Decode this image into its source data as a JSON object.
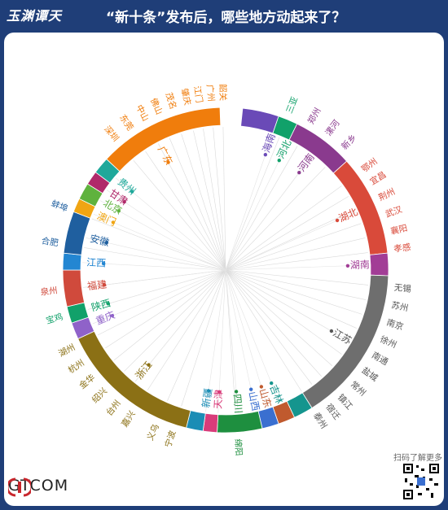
{
  "header": {
    "logo": "玉渊谭天",
    "title": "“新十条”发布后，哪些地方动起来了？"
  },
  "footer": {
    "brand": "GTCOM",
    "qr_label": "扫码了解更多"
  },
  "chart_data": {
    "type": "chord-radial",
    "title": "“新十条”发布后，哪些地方动起来了？",
    "provinces": [
      {
        "name": "海南",
        "color": "#6a4ab7",
        "cities": []
      },
      {
        "name": "河北",
        "color": "#11a16a",
        "cities": [
          "三亚"
        ]
      },
      {
        "name": "河南",
        "color": "#8a3a8e",
        "cities": [
          "郑州",
          "漯河",
          "新乡"
        ]
      },
      {
        "name": "湖北",
        "color": "#d94a3a",
        "cities": [
          "鄂州",
          "宜昌",
          "荆州",
          "武汉",
          "襄阳",
          "孝感"
        ]
      },
      {
        "name": "湖南",
        "color": "#a23d96",
        "cities": []
      },
      {
        "name": "江苏",
        "color": "#6e6e6e",
        "cities": [
          "无锡",
          "苏州",
          "南京",
          "徐州",
          "南通",
          "盐城",
          "常州",
          "镇江",
          "宿迁",
          "泰州"
        ]
      },
      {
        "name": "吉林",
        "color": "#15958e",
        "cities": []
      },
      {
        "name": "山东",
        "color": "#c05a2e",
        "cities": []
      },
      {
        "name": "山西",
        "color": "#3a6fd0",
        "cities": []
      },
      {
        "name": "四川",
        "color": "#1e8f3f",
        "cities": [
          "绵阳"
        ]
      },
      {
        "name": "天津",
        "color": "#d83c7a",
        "cities": []
      },
      {
        "name": "新疆",
        "color": "#1b8db5",
        "cities": []
      },
      {
        "name": "浙江",
        "color": "#8b7015",
        "cities": [
          "湖州",
          "杭州",
          "金华",
          "绍兴",
          "台州",
          "嘉兴",
          "义乌",
          "宁波"
        ]
      },
      {
        "name": "重庆",
        "color": "#8f62c9",
        "cities": []
      },
      {
        "name": "陕西",
        "color": "#11a16a",
        "cities": [
          "宝鸡"
        ]
      },
      {
        "name": "福建",
        "color": "#d04a3c",
        "cities": [
          "泉州"
        ]
      },
      {
        "name": "江西",
        "color": "#2386d2",
        "cities": []
      },
      {
        "name": "安徽",
        "color": "#1f5f9f",
        "cities": [
          "蚌埠",
          "合肥"
        ]
      },
      {
        "name": "澳门",
        "color": "#f0a513",
        "cities": []
      },
      {
        "name": "北京",
        "color": "#5fb23e",
        "cities": []
      },
      {
        "name": "甘肃",
        "color": "#b02a6a",
        "cities": []
      },
      {
        "name": "贵州",
        "color": "#1fa89a",
        "cities": []
      },
      {
        "name": "广东",
        "color": "#f07d0c",
        "cities": [
          "深圳",
          "东莞",
          "中山",
          "佛山",
          "茂名",
          "肇庆",
          "江门",
          "广州",
          "韶关"
        ]
      }
    ]
  },
  "segments": [
    {
      "name": "海南",
      "start": 6,
      "end": 19,
      "color": "#6a4ab7"
    },
    {
      "name": "河北",
      "start": 19,
      "end": 26,
      "color": "#11a16a"
    },
    {
      "name": "河南",
      "start": 26,
      "end": 48,
      "color": "#8a3a8e"
    },
    {
      "name": "湖北",
      "start": 48,
      "end": 84,
      "color": "#d94a3a"
    },
    {
      "name": "湖南",
      "start": 84,
      "end": 92,
      "color": "#a23d96"
    },
    {
      "name": "江苏",
      "start": 92,
      "end": 148,
      "color": "#6e6e6e"
    },
    {
      "name": "吉林",
      "start": 148,
      "end": 155,
      "color": "#15958e"
    },
    {
      "name": "山东",
      "start": 155,
      "end": 161,
      "color": "#c05a2e"
    },
    {
      "name": "山西",
      "start": 161,
      "end": 167,
      "color": "#3a6fd0"
    },
    {
      "name": "四川",
      "start": 167,
      "end": 183,
      "color": "#1e8f3f"
    },
    {
      "name": "天津",
      "start": 183,
      "end": 188,
      "color": "#d83c7a"
    },
    {
      "name": "新疆",
      "start": 188,
      "end": 194,
      "color": "#1b8db5"
    },
    {
      "name": "浙江",
      "start": 194,
      "end": 245,
      "color": "#8b7015"
    },
    {
      "name": "重庆",
      "start": 245,
      "end": 251,
      "color": "#8f62c9"
    },
    {
      "name": "陕西",
      "start": 251,
      "end": 257,
      "color": "#11a16a"
    },
    {
      "name": "福建",
      "start": 257,
      "end": 270,
      "color": "#d04a3c"
    },
    {
      "name": "江西",
      "start": 270,
      "end": 276,
      "color": "#2386d2"
    },
    {
      "name": "安徽",
      "start": 276,
      "end": 291,
      "color": "#1f5f9f"
    },
    {
      "name": "澳门",
      "start": 291,
      "end": 296,
      "color": "#f0a513"
    },
    {
      "name": "北京",
      "start": 296,
      "end": 302,
      "color": "#5fb23e"
    },
    {
      "name": "甘肃",
      "start": 302,
      "end": 307,
      "color": "#b02a6a"
    },
    {
      "name": "贵州",
      "start": 307,
      "end": 313,
      "color": "#1fa89a"
    },
    {
      "name": "广东",
      "start": 313,
      "end": 358,
      "color": "#f07d0c"
    }
  ],
  "outer_labels": [
    {
      "t": "三亚",
      "a": 22,
      "c": "#11a16a"
    },
    {
      "t": "郑州",
      "a": 30,
      "c": "#8a3a8e"
    },
    {
      "t": "漯河",
      "a": 37,
      "c": "#8a3a8e"
    },
    {
      "t": "新乡",
      "a": 44,
      "c": "#8a3a8e"
    },
    {
      "t": "鄂州",
      "a": 54,
      "c": "#d94a3a"
    },
    {
      "t": "宜昌",
      "a": 59,
      "c": "#d94a3a"
    },
    {
      "t": "荆州",
      "a": 65,
      "c": "#d94a3a"
    },
    {
      "t": "武汉",
      "a": 71,
      "c": "#d94a3a"
    },
    {
      "t": "襄阳",
      "a": 77,
      "c": "#d94a3a"
    },
    {
      "t": "孝感",
      "a": 83,
      "c": "#d94a3a"
    },
    {
      "t": "无锡",
      "a": 96,
      "c": "#555555"
    },
    {
      "t": "苏州",
      "a": 102,
      "c": "#555555"
    },
    {
      "t": "南京",
      "a": 108,
      "c": "#555555"
    },
    {
      "t": "徐州",
      "a": 114,
      "c": "#555555"
    },
    {
      "t": "南通",
      "a": 120,
      "c": "#555555"
    },
    {
      "t": "盐城",
      "a": 126,
      "c": "#555555"
    },
    {
      "t": "常州",
      "a": 132,
      "c": "#555555"
    },
    {
      "t": "镇江",
      "a": 138,
      "c": "#555555"
    },
    {
      "t": "宿迁",
      "a": 143,
      "c": "#555555"
    },
    {
      "t": "泰州",
      "a": 148,
      "c": "#555555"
    },
    {
      "t": "绵阳",
      "a": 176,
      "c": "#1e8f3f"
    },
    {
      "t": "宁波",
      "a": 198,
      "c": "#8b7015"
    },
    {
      "t": "义乌",
      "a": 204,
      "c": "#8b7015"
    },
    {
      "t": "嘉兴",
      "a": 213,
      "c": "#8b7015"
    },
    {
      "t": "台州",
      "a": 219,
      "c": "#8b7015"
    },
    {
      "t": "绍兴",
      "a": 225,
      "c": "#8b7015"
    },
    {
      "t": "金华",
      "a": 231,
      "c": "#8b7015"
    },
    {
      "t": "杭州",
      "a": 237,
      "c": "#8b7015"
    },
    {
      "t": "湖州",
      "a": 243,
      "c": "#8b7015"
    },
    {
      "t": "宝鸡",
      "a": 254,
      "c": "#11a16a"
    },
    {
      "t": "泉州",
      "a": 263,
      "c": "#d04a3c"
    },
    {
      "t": "合肥",
      "a": 279,
      "c": "#1f5f9f"
    },
    {
      "t": "蚌埠",
      "a": 291,
      "c": "#1f5f9f"
    },
    {
      "t": "深圳",
      "a": 320,
      "c": "#f07d0c"
    },
    {
      "t": "东莞",
      "a": 326,
      "c": "#f07d0c"
    },
    {
      "t": "中山",
      "a": 332,
      "c": "#f07d0c"
    },
    {
      "t": "佛山",
      "a": 337,
      "c": "#f07d0c"
    },
    {
      "t": "茂名",
      "a": 342,
      "c": "#f07d0c"
    },
    {
      "t": "肇庆",
      "a": 347,
      "c": "#f07d0c"
    },
    {
      "t": "江门",
      "a": 351,
      "c": "#f07d0c"
    },
    {
      "t": "广州",
      "a": 355,
      "c": "#f07d0c"
    },
    {
      "t": "韶关",
      "a": 359,
      "c": "#f07d0c"
    }
  ],
  "inner_labels": [
    {
      "t": "海南",
      "a": 19,
      "c": "#6a4ab7"
    },
    {
      "t": "河北",
      "a": 26,
      "c": "#11a16a"
    },
    {
      "t": "河南",
      "a": 37,
      "c": "#8a3a8e"
    },
    {
      "t": "湖北",
      "a": 66,
      "c": "#d94a3a"
    },
    {
      "t": "湖南",
      "a": 88,
      "c": "#a23d96"
    },
    {
      "t": "江苏",
      "a": 120,
      "c": "#555555"
    },
    {
      "t": "吉林",
      "a": 158,
      "c": "#15958e"
    },
    {
      "t": "山东",
      "a": 163,
      "c": "#c05a2e"
    },
    {
      "t": "山西",
      "a": 168,
      "c": "#3a6fd0"
    },
    {
      "t": "四川",
      "a": 175,
      "c": "#1e8f3f"
    },
    {
      "t": "天津",
      "a": 183,
      "c": "#d83c7a"
    },
    {
      "t": "新疆",
      "a": 188,
      "c": "#1b8db5"
    },
    {
      "t": "浙江",
      "a": 219,
      "c": "#8b7015"
    },
    {
      "t": "重庆",
      "a": 248,
      "c": "#8f62c9"
    },
    {
      "t": "陕西",
      "a": 254,
      "c": "#11a16a"
    },
    {
      "t": "福建",
      "a": 263,
      "c": "#d04a3c"
    },
    {
      "t": "江西",
      "a": 273,
      "c": "#2386d2"
    },
    {
      "t": "安徽",
      "a": 283,
      "c": "#1f5f9f"
    },
    {
      "t": "澳门",
      "a": 293,
      "c": "#f0a513"
    },
    {
      "t": "北京",
      "a": 299,
      "c": "#5fb23e"
    },
    {
      "t": "甘肃",
      "a": 304,
      "c": "#b02a6a"
    },
    {
      "t": "贵州",
      "a": 310,
      "c": "#1fa89a"
    },
    {
      "t": "广东",
      "a": 332,
      "c": "#f07d0c"
    }
  ]
}
